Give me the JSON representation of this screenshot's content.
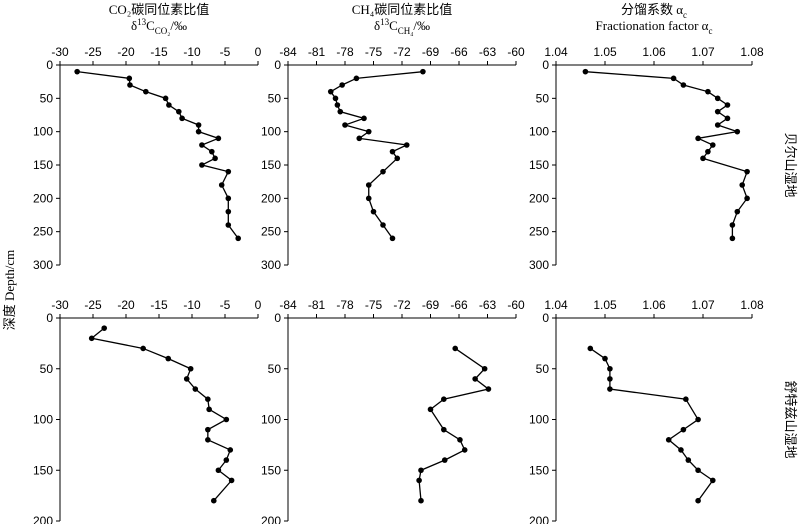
{
  "chart_data": [
    {
      "type": "line",
      "title": "CO₂碳同位素比值",
      "subtitle": [
        {
          "text": "δ"
        },
        {
          "text": "13",
          "script": "sup"
        },
        {
          "text": "C"
        },
        {
          "text": "CO₂",
          "script": "sub"
        },
        {
          "text": "/‰"
        }
      ],
      "ylabel": "深度 Depth/cm",
      "xlim": [
        -30,
        0
      ],
      "xticks": [
        -30,
        -25,
        -20,
        -15,
        -10,
        -5,
        0
      ],
      "ylim": [
        0,
        300
      ],
      "yticks": [
        0,
        50,
        100,
        150,
        200,
        250,
        300
      ],
      "color": "#000000",
      "x": [
        -27.4,
        -19.5,
        -19.4,
        -17,
        -14,
        -13.5,
        -12,
        -11.5,
        -9,
        -9,
        -6,
        -8.5,
        -7,
        -6.5,
        -8.5,
        -4.5,
        -5.5,
        -4.5,
        -4.5,
        -4.5,
        -3
      ],
      "values": [
        10,
        20,
        30,
        40,
        50,
        60,
        70,
        80,
        90,
        100,
        110,
        120,
        130,
        140,
        150,
        160,
        180,
        200,
        220,
        240,
        260
      ]
    },
    {
      "type": "line",
      "title": "CH₄碳同位素比值",
      "subtitle": [
        {
          "text": "δ"
        },
        {
          "text": "13",
          "script": "sup"
        },
        {
          "text": "C"
        },
        {
          "text": "CH₄",
          "script": "sub"
        },
        {
          "text": "/‰"
        }
      ],
      "xlim": [
        -84,
        -60
      ],
      "xticks": [
        -84,
        -81,
        -78,
        -75,
        -72,
        -69,
        -66,
        -63,
        -60
      ],
      "ylim": [
        0,
        300
      ],
      "yticks": [
        0,
        50,
        100,
        150,
        200,
        250,
        300
      ],
      "color": "#000000",
      "x": [
        -69.8,
        -76.8,
        -78.3,
        -79.5,
        -79,
        -78.8,
        -78.5,
        -76,
        -78,
        -75.5,
        -76.5,
        -71.5,
        -73,
        -72.5,
        -74,
        -75.5,
        -75.5,
        -75,
        -74,
        -73
      ],
      "values": [
        10,
        20,
        30,
        40,
        50,
        60,
        70,
        80,
        90,
        100,
        110,
        120,
        130,
        140,
        160,
        180,
        200,
        220,
        240,
        260
      ]
    },
    {
      "type": "line",
      "title": [
        {
          "text": "分馏系数 α"
        },
        {
          "text": "c",
          "script": "sub"
        }
      ],
      "subtitle": [
        {
          "text": "Fractionation factor α"
        },
        {
          "text": "c",
          "script": "sub"
        }
      ],
      "annotation": "贝尔山湿地",
      "xlim": [
        1.04,
        1.08
      ],
      "xticks": [
        1.04,
        1.05,
        1.06,
        1.07,
        1.08
      ],
      "ylim": [
        0,
        300
      ],
      "yticks": [
        0,
        50,
        100,
        150,
        200,
        250,
        300
      ],
      "color": "#000000",
      "x": [
        1.046,
        1.064,
        1.066,
        1.071,
        1.073,
        1.075,
        1.073,
        1.075,
        1.073,
        1.077,
        1.069,
        1.072,
        1.071,
        1.07,
        1.079,
        1.078,
        1.079,
        1.077,
        1.076,
        1.076
      ],
      "values": [
        10,
        20,
        30,
        40,
        50,
        60,
        70,
        80,
        90,
        100,
        110,
        120,
        130,
        140,
        160,
        180,
        200,
        220,
        240,
        260
      ]
    },
    {
      "type": "line",
      "xlim": [
        -30,
        0
      ],
      "xticks": [
        -30,
        -25,
        -20,
        -15,
        -10,
        -5,
        0
      ],
      "ylim": [
        0,
        200
      ],
      "yticks": [
        0,
        50,
        100,
        150,
        200
      ],
      "color": "#000000",
      "x": [
        -23.3,
        -25.2,
        -17.4,
        -13.6,
        -10.2,
        -10.8,
        -9.5,
        -7.6,
        -7.4,
        -4.8,
        -7.6,
        -7.6,
        -4.2,
        -4.8,
        -6,
        -4,
        -6.7
      ],
      "values": [
        10,
        20,
        30,
        40,
        50,
        60,
        70,
        80,
        90,
        100,
        110,
        120,
        130,
        140,
        150,
        160,
        180
      ]
    },
    {
      "type": "line",
      "xlim": [
        -84,
        -60
      ],
      "xticks": [
        -84,
        -81,
        -78,
        -75,
        -72,
        -69,
        -66,
        -63,
        -60
      ],
      "ylim": [
        0,
        200
      ],
      "yticks": [
        0,
        50,
        100,
        150,
        200
      ],
      "color": "#000000",
      "x": [
        -66.4,
        -63.3,
        -64.3,
        -62.9,
        -67.6,
        -69,
        -67.6,
        -65.9,
        -65.4,
        -67.5,
        -70,
        -70.2,
        -70
      ],
      "values": [
        30,
        50,
        60,
        70,
        80,
        90,
        110,
        120,
        130,
        140,
        150,
        160,
        180
      ]
    },
    {
      "type": "line",
      "annotation": "舒特兹山湿地",
      "xlim": [
        1.04,
        1.08
      ],
      "xticks": [
        1.04,
        1.05,
        1.06,
        1.07,
        1.08
      ],
      "ylim": [
        0,
        200
      ],
      "yticks": [
        0,
        50,
        100,
        150,
        200
      ],
      "color": "#000000",
      "x": [
        1.047,
        1.05,
        1.051,
        1.051,
        1.051,
        1.0665,
        1.069,
        1.066,
        1.063,
        1.0655,
        1.067,
        1.069,
        1.072,
        1.069
      ],
      "values": [
        30,
        40,
        50,
        60,
        70,
        80,
        100,
        110,
        120,
        130,
        140,
        150,
        160,
        180
      ]
    }
  ]
}
